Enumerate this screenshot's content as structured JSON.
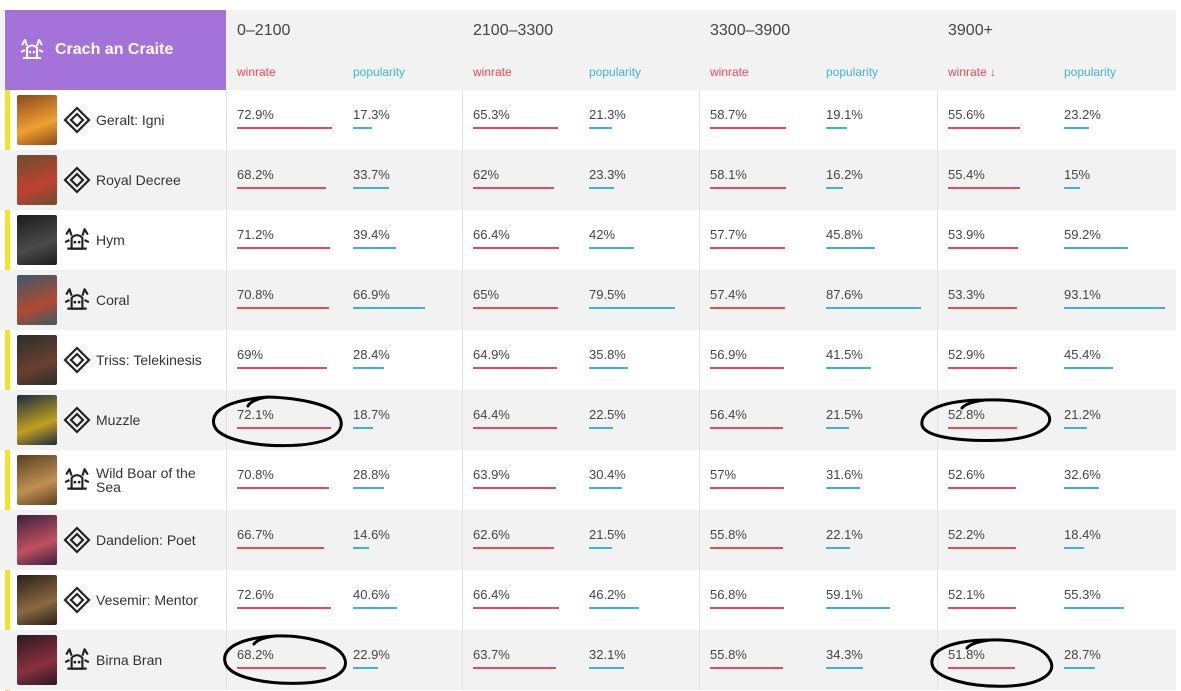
{
  "colors": {
    "accent": "#a473d9",
    "winrate": "#e64a56",
    "popularity": "#3fb4d2",
    "highlight_bar": "#f3e421",
    "row_alt": "#f2f2f2"
  },
  "deck": {
    "title": "Crach an Craite",
    "icon": "skellige-faction-icon"
  },
  "labels": {
    "winrate": "winrate",
    "winrate_sorted": "winrate ↓",
    "popularity": "popularity"
  },
  "ranges": [
    {
      "title": "0–2100"
    },
    {
      "title": "2100–3300"
    },
    {
      "title": "3300–3900"
    },
    {
      "title": "3900+"
    }
  ],
  "rows": [
    {
      "name": "Geralt: Igni",
      "type_icon": "diamond-icon",
      "art": [
        "#8a4a1e",
        "#f0a030"
      ],
      "stats": [
        [
          "72.9%",
          "17.3%"
        ],
        [
          "65.3%",
          "21.3%"
        ],
        [
          "58.7%",
          "19.1%"
        ],
        [
          "55.6%",
          "23.2%"
        ]
      ],
      "win_frac": [
        0.729,
        0.653,
        0.587,
        0.556
      ],
      "pop_frac": [
        0.173,
        0.213,
        0.191,
        0.232
      ]
    },
    {
      "name": "Royal Decree",
      "type_icon": "diamond-icon",
      "art": [
        "#6b5030",
        "#c04030"
      ],
      "stats": [
        [
          "68.2%",
          "33.7%"
        ],
        [
          "62%",
          "23.3%"
        ],
        [
          "58.1%",
          "16.2%"
        ],
        [
          "55.4%",
          "15%"
        ]
      ],
      "win_frac": [
        0.682,
        0.62,
        0.581,
        0.554
      ],
      "pop_frac": [
        0.337,
        0.233,
        0.162,
        0.15
      ]
    },
    {
      "name": "Hym",
      "type_icon": "crown-faction-icon",
      "art": [
        "#1c1c1c",
        "#4a4a4a"
      ],
      "stats": [
        [
          "71.2%",
          "39.4%"
        ],
        [
          "66.4%",
          "42%"
        ],
        [
          "57.7%",
          "45.8%"
        ],
        [
          "53.9%",
          "59.2%"
        ]
      ],
      "win_frac": [
        0.712,
        0.664,
        0.577,
        0.539
      ],
      "pop_frac": [
        0.394,
        0.42,
        0.458,
        0.592
      ]
    },
    {
      "name": "Coral",
      "type_icon": "crown-faction-icon",
      "art": [
        "#3a5a6a",
        "#b04a30"
      ],
      "stats": [
        [
          "70.8%",
          "66.9%"
        ],
        [
          "65%",
          "79.5%"
        ],
        [
          "57.4%",
          "87.6%"
        ],
        [
          "53.3%",
          "93.1%"
        ]
      ],
      "win_frac": [
        0.708,
        0.65,
        0.574,
        0.533
      ],
      "pop_frac": [
        0.669,
        0.795,
        0.876,
        0.931
      ]
    },
    {
      "name": "Triss: Telekinesis",
      "type_icon": "diamond-icon",
      "art": [
        "#2a2e2a",
        "#6a4030"
      ],
      "stats": [
        [
          "69%",
          "28.4%"
        ],
        [
          "64.9%",
          "35.8%"
        ],
        [
          "56.9%",
          "41.5%"
        ],
        [
          "52.9%",
          "45.4%"
        ]
      ],
      "win_frac": [
        0.69,
        0.649,
        0.569,
        0.529
      ],
      "pop_frac": [
        0.284,
        0.358,
        0.415,
        0.454
      ]
    },
    {
      "name": "Muzzle",
      "type_icon": "diamond-icon",
      "art": [
        "#1a2a40",
        "#c0a020"
      ],
      "stats": [
        [
          "72.1%",
          "18.7%"
        ],
        [
          "64.4%",
          "22.5%"
        ],
        [
          "56.4%",
          "21.5%"
        ],
        [
          "52.8%",
          "21.2%"
        ]
      ],
      "win_frac": [
        0.721,
        0.644,
        0.564,
        0.528
      ],
      "pop_frac": [
        0.187,
        0.225,
        0.215,
        0.212
      ]
    },
    {
      "name": "Wild Boar of the Sea",
      "type_icon": "crown-faction-icon",
      "art": [
        "#5a4020",
        "#c09050"
      ],
      "stats": [
        [
          "70.8%",
          "28.8%"
        ],
        [
          "63.9%",
          "30.4%"
        ],
        [
          "57%",
          "31.6%"
        ],
        [
          "52.6%",
          "32.6%"
        ]
      ],
      "win_frac": [
        0.708,
        0.639,
        0.57,
        0.526
      ],
      "pop_frac": [
        0.288,
        0.304,
        0.316,
        0.326
      ]
    },
    {
      "name": "Dandelion: Poet",
      "type_icon": "diamond-icon",
      "art": [
        "#3a2040",
        "#c05060"
      ],
      "stats": [
        [
          "66.7%",
          "14.6%"
        ],
        [
          "62.6%",
          "21.5%"
        ],
        [
          "55.8%",
          "22.1%"
        ],
        [
          "52.2%",
          "18.4%"
        ]
      ],
      "win_frac": [
        0.667,
        0.626,
        0.558,
        0.522
      ],
      "pop_frac": [
        0.146,
        0.215,
        0.221,
        0.184
      ]
    },
    {
      "name": "Vesemir: Mentor",
      "type_icon": "diamond-icon",
      "art": [
        "#2a2018",
        "#8a6a40"
      ],
      "stats": [
        [
          "72.6%",
          "40.6%"
        ],
        [
          "66.4%",
          "46.2%"
        ],
        [
          "56.8%",
          "59.1%"
        ],
        [
          "52.1%",
          "55.3%"
        ]
      ],
      "win_frac": [
        0.726,
        0.664,
        0.568,
        0.521
      ],
      "pop_frac": [
        0.406,
        0.462,
        0.591,
        0.553
      ]
    },
    {
      "name": "Birna Bran",
      "type_icon": "crown-faction-icon",
      "art": [
        "#2a1a20",
        "#8a3040"
      ],
      "stats": [
        [
          "68.2%",
          "22.9%"
        ],
        [
          "63.7%",
          "32.1%"
        ],
        [
          "55.8%",
          "34.3%"
        ],
        [
          "51.8%",
          "28.7%"
        ]
      ],
      "win_frac": [
        0.682,
        0.637,
        0.558,
        0.518
      ],
      "pop_frac": [
        0.229,
        0.321,
        0.343,
        0.287
      ]
    }
  ]
}
